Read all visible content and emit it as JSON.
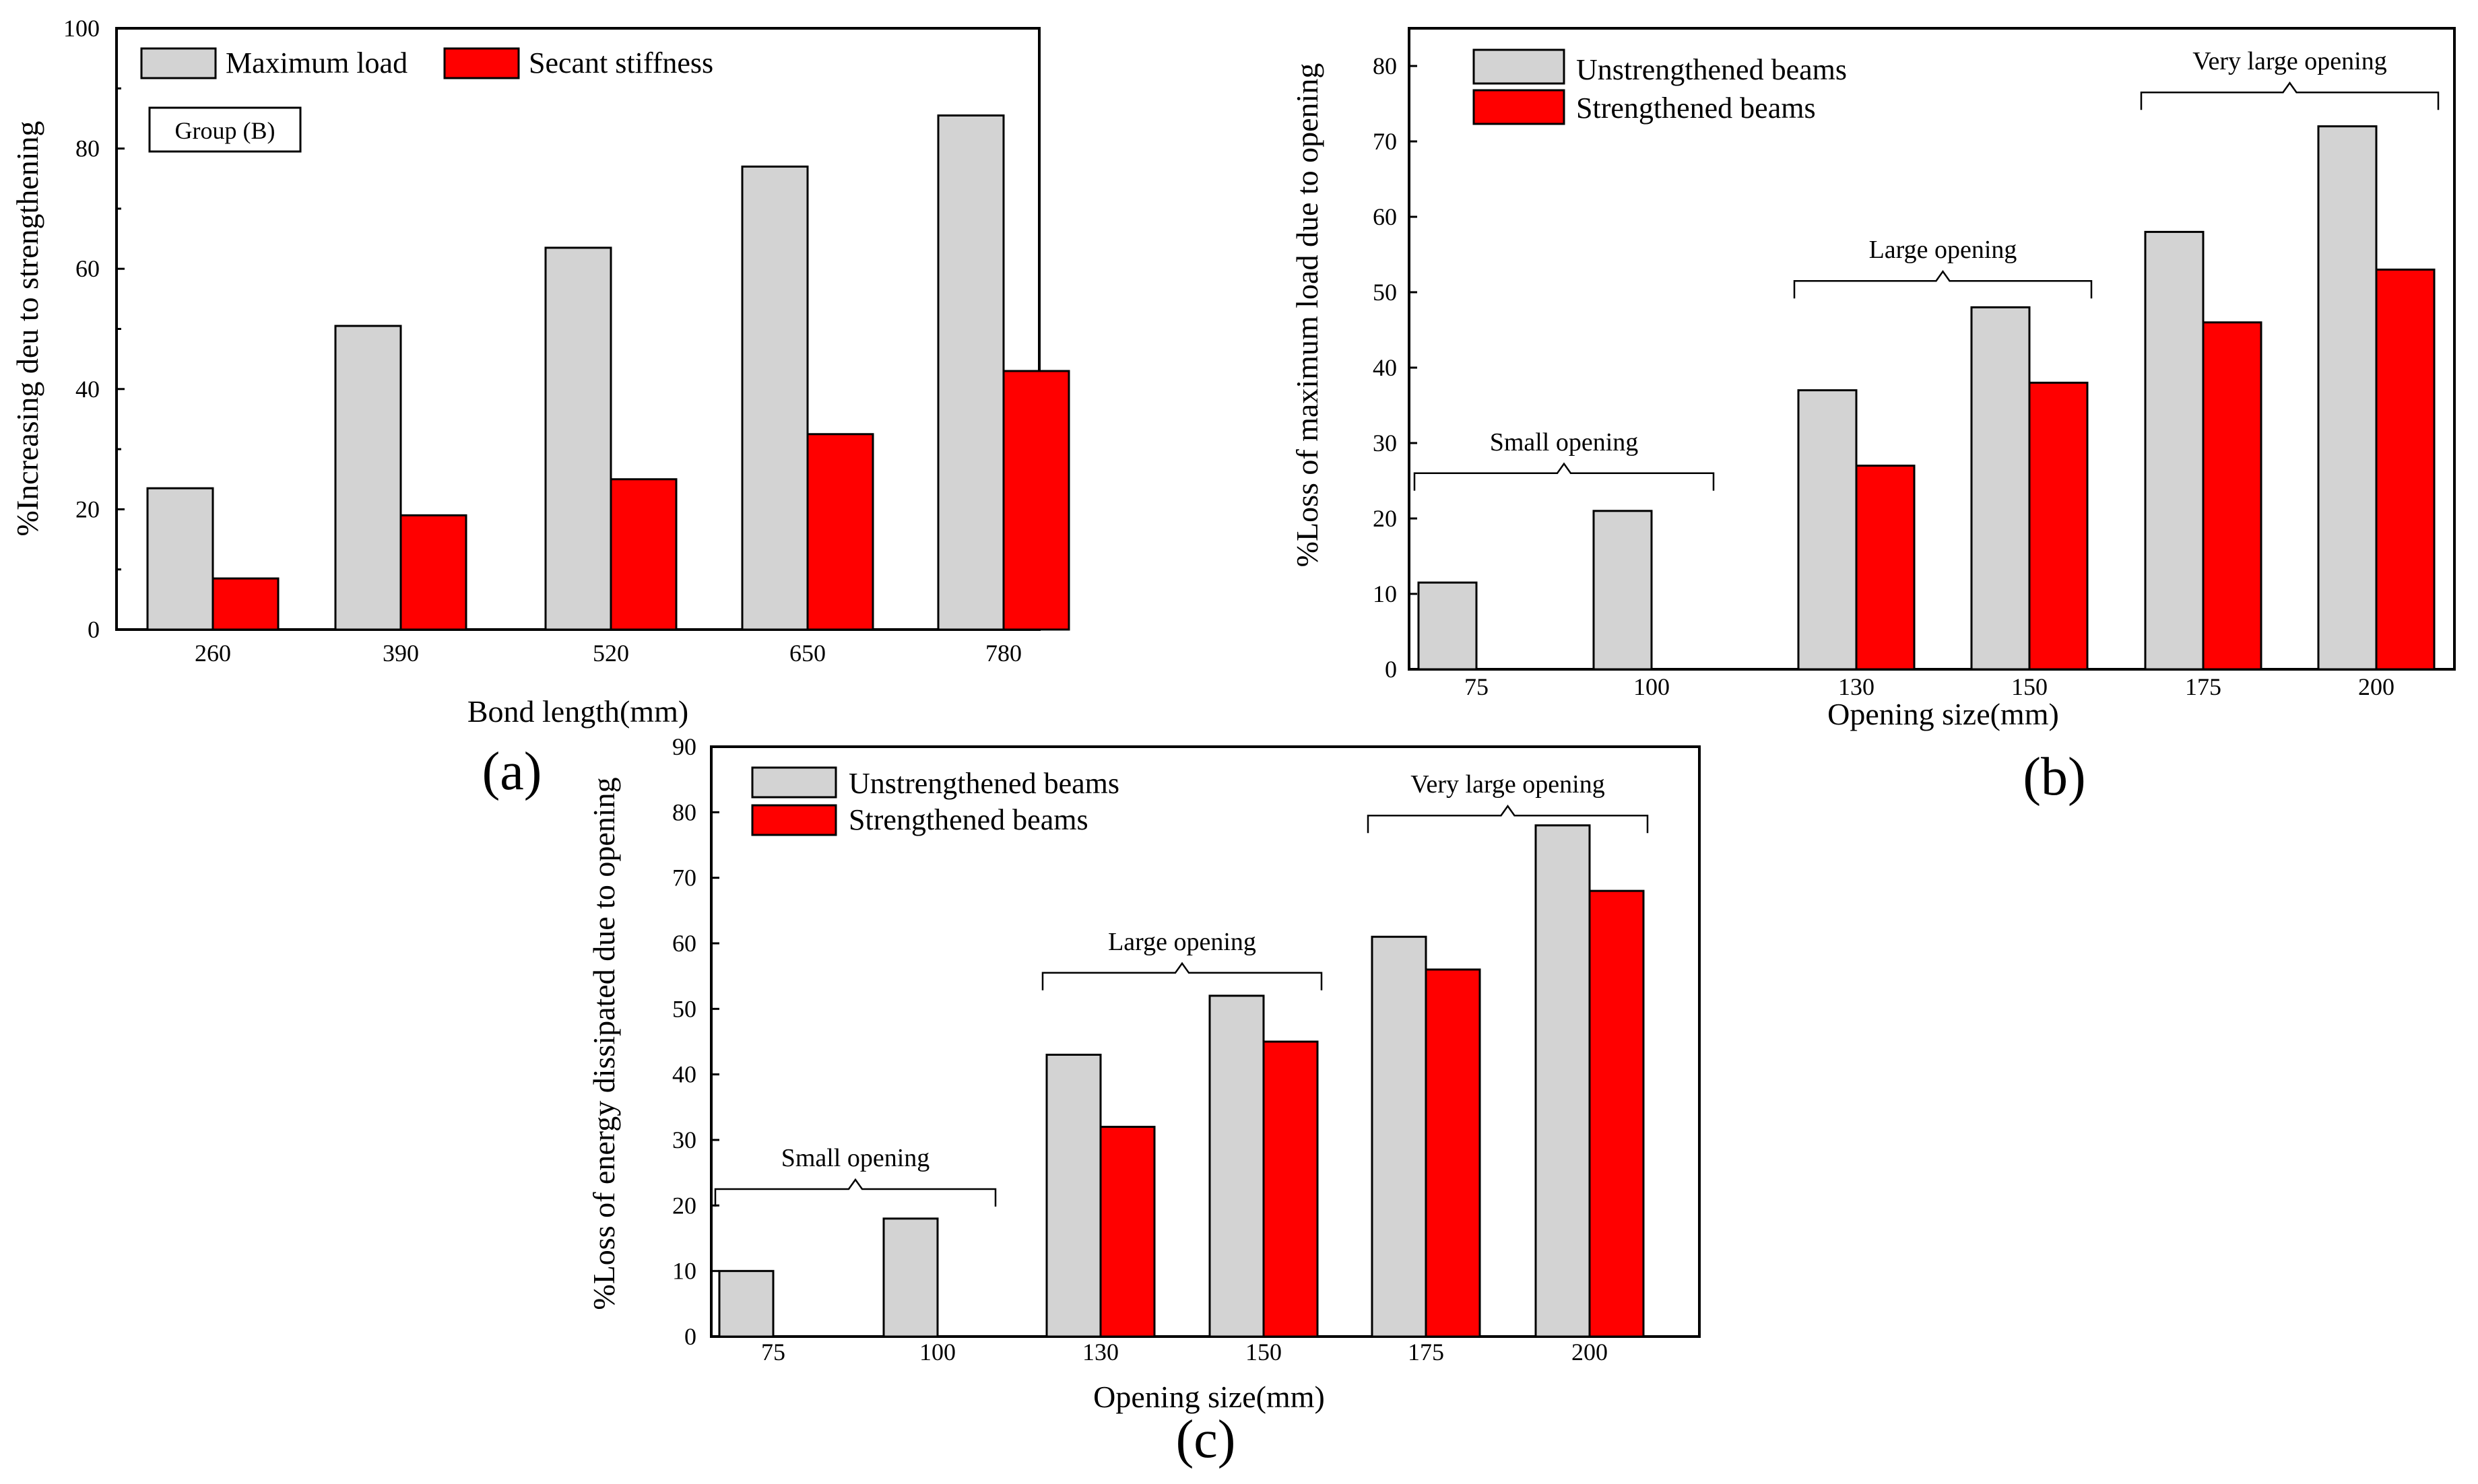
{
  "colors": {
    "primary": "#d3d3d3",
    "secondary": "#ff0000",
    "stroke": "#000000"
  },
  "chart_data": [
    {
      "panel": "(a)",
      "type": "bar",
      "categories": [
        "260",
        "390",
        "520",
        "650",
        "780"
      ],
      "series": [
        {
          "name": "Maximum load",
          "values": [
            23.5,
            50.5,
            63.5,
            77,
            85.5
          ]
        },
        {
          "name": "Secant stiffness",
          "values": [
            8.5,
            19,
            25,
            32.5,
            43
          ]
        }
      ],
      "xlabel": "Bond length(mm)",
      "ylabel": "%Increasing deu to strengthening",
      "ylim": [
        0,
        100
      ],
      "yticks": [
        "0",
        "20",
        "40",
        "60",
        "80",
        "100"
      ],
      "annotation_box": "Group (B)",
      "legend": "top-left"
    },
    {
      "panel": "(b)",
      "type": "bar",
      "categories": [
        "75",
        "100",
        "130",
        "150",
        "175",
        "200"
      ],
      "series": [
        {
          "name": "Unstrengthened beams",
          "values": [
            11.5,
            21,
            37,
            48,
            58,
            72
          ]
        },
        {
          "name": "Strengthened beams",
          "values": [
            null,
            null,
            27,
            38,
            46,
            53
          ]
        }
      ],
      "xlabel": "Opening size(mm)",
      "ylabel": "%Loss of maximum load due to opening",
      "ylim": [
        0,
        85
      ],
      "yticks": [
        "0",
        "10",
        "20",
        "30",
        "40",
        "50",
        "60",
        "70",
        "80"
      ],
      "annotations": [
        {
          "text": "Small opening",
          "from": 0,
          "to": 1,
          "level": 26
        },
        {
          "text": "Large opening",
          "from": 2,
          "to": 3,
          "level": 51.5
        },
        {
          "text": "Very large opening",
          "from": 4,
          "to": 5,
          "level": 76.5
        }
      ],
      "legend": "top-left"
    },
    {
      "panel": "(c)",
      "type": "bar",
      "categories": [
        "75",
        "100",
        "130",
        "150",
        "175",
        "200"
      ],
      "series": [
        {
          "name": "Unstrengthened beams",
          "values": [
            10,
            18,
            43,
            52,
            61,
            78
          ]
        },
        {
          "name": "Strengthened beams",
          "values": [
            null,
            null,
            32,
            45,
            56,
            68
          ]
        }
      ],
      "xlabel": "Opening size(mm)",
      "ylabel": "%Loss of energy dissipated due to opening",
      "ylim": [
        0,
        90
      ],
      "yticks": [
        "0",
        "10",
        "20",
        "30",
        "40",
        "50",
        "60",
        "70",
        "80",
        "90"
      ],
      "annotations": [
        {
          "text": "Small opening",
          "from": 0,
          "to": 1,
          "level": 22.5
        },
        {
          "text": "Large opening",
          "from": 2,
          "to": 3,
          "level": 55.5
        },
        {
          "text": "Very large opening",
          "from": 4,
          "to": 5,
          "level": 79.5
        }
      ],
      "legend": "top-left"
    }
  ]
}
